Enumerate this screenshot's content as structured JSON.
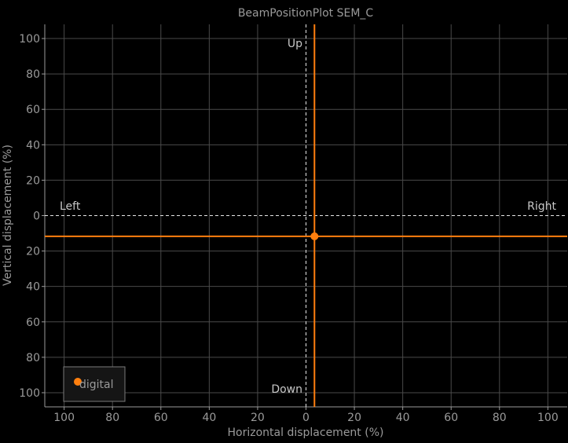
{
  "chart_data": {
    "type": "scatter",
    "title": "BeamPositionPlot SEM_C",
    "xlabel": "Horizontal displacement (%)",
    "ylabel": "Vertical displacement (%)",
    "xlim": [
      -108,
      108
    ],
    "ylim": [
      -108,
      108
    ],
    "x_ticks": [
      -100,
      -80,
      -60,
      -40,
      -20,
      0,
      20,
      40,
      60,
      80,
      100
    ],
    "y_ticks": [
      -100,
      -80,
      -60,
      -40,
      -20,
      0,
      20,
      40,
      60,
      80,
      100
    ],
    "x_tick_labels": [
      "100",
      "80",
      "60",
      "40",
      "20",
      "0",
      "20",
      "40",
      "60",
      "80",
      "100"
    ],
    "y_tick_labels": [
      "100",
      "80",
      "60",
      "40",
      "20",
      "0",
      "20",
      "40",
      "60",
      "80",
      "100"
    ],
    "grid": true,
    "quadrant_labels": {
      "up": "Up",
      "down": "Down",
      "left": "Left",
      "right": "Right"
    },
    "series": [
      {
        "name": "digital",
        "color": "#ff7f0e",
        "x": [
          3.5
        ],
        "y": [
          -11.7
        ]
      }
    ],
    "crosshair": {
      "x": 3.5,
      "y": -11.7,
      "color": "#ff7f0e"
    },
    "legend": {
      "location": "lower-left",
      "entries": [
        "digital"
      ]
    }
  }
}
